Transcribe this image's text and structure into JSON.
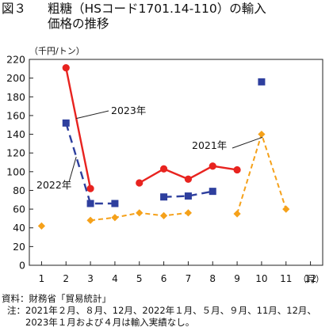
{
  "figure": {
    "label": "図３",
    "title_line1": "粗糖（HSコード1701.14-110）の輸入",
    "title_line2": "価格の推移"
  },
  "footer": {
    "source": "資料：財務省「貿易統計」",
    "note_label": "注：",
    "note_line1": "2021年２月、８月、12月、2022年１月、５月、９月、11月、12月、",
    "note_line2": "2023年１月および４月は輸入実績なし。"
  },
  "chart_data": {
    "type": "line",
    "ylabel": "（千円/トン）",
    "xlabel": "（月）",
    "categories": [
      1,
      2,
      3,
      4,
      5,
      6,
      7,
      8,
      9,
      10,
      11,
      12
    ],
    "xtick_labels": [
      "1",
      "2",
      "3",
      "4",
      "5",
      "6",
      "7",
      "8",
      "9",
      "10",
      "11",
      "12"
    ],
    "ylim": [
      0,
      220
    ],
    "yticks": [
      0,
      20,
      40,
      60,
      80,
      100,
      120,
      140,
      160,
      180,
      200,
      220
    ],
    "grid": false,
    "series": [
      {
        "name": "2021年",
        "color": "#f5a11a",
        "style": "dashed",
        "marker": "diamond",
        "values": [
          42,
          null,
          48,
          51,
          56,
          53,
          56,
          null,
          55,
          140,
          60,
          null
        ]
      },
      {
        "name": "2022年",
        "color": "#2e3f9e",
        "style": "dashed",
        "marker": "square",
        "values": [
          null,
          152,
          66,
          66,
          null,
          73,
          74,
          79,
          null,
          196,
          null,
          null
        ]
      },
      {
        "name": "2023年",
        "color": "#e8231f",
        "style": "solid",
        "marker": "circle",
        "values": [
          null,
          211,
          82,
          null,
          88,
          103,
          92,
          106,
          102,
          null,
          null,
          null
        ]
      }
    ]
  }
}
